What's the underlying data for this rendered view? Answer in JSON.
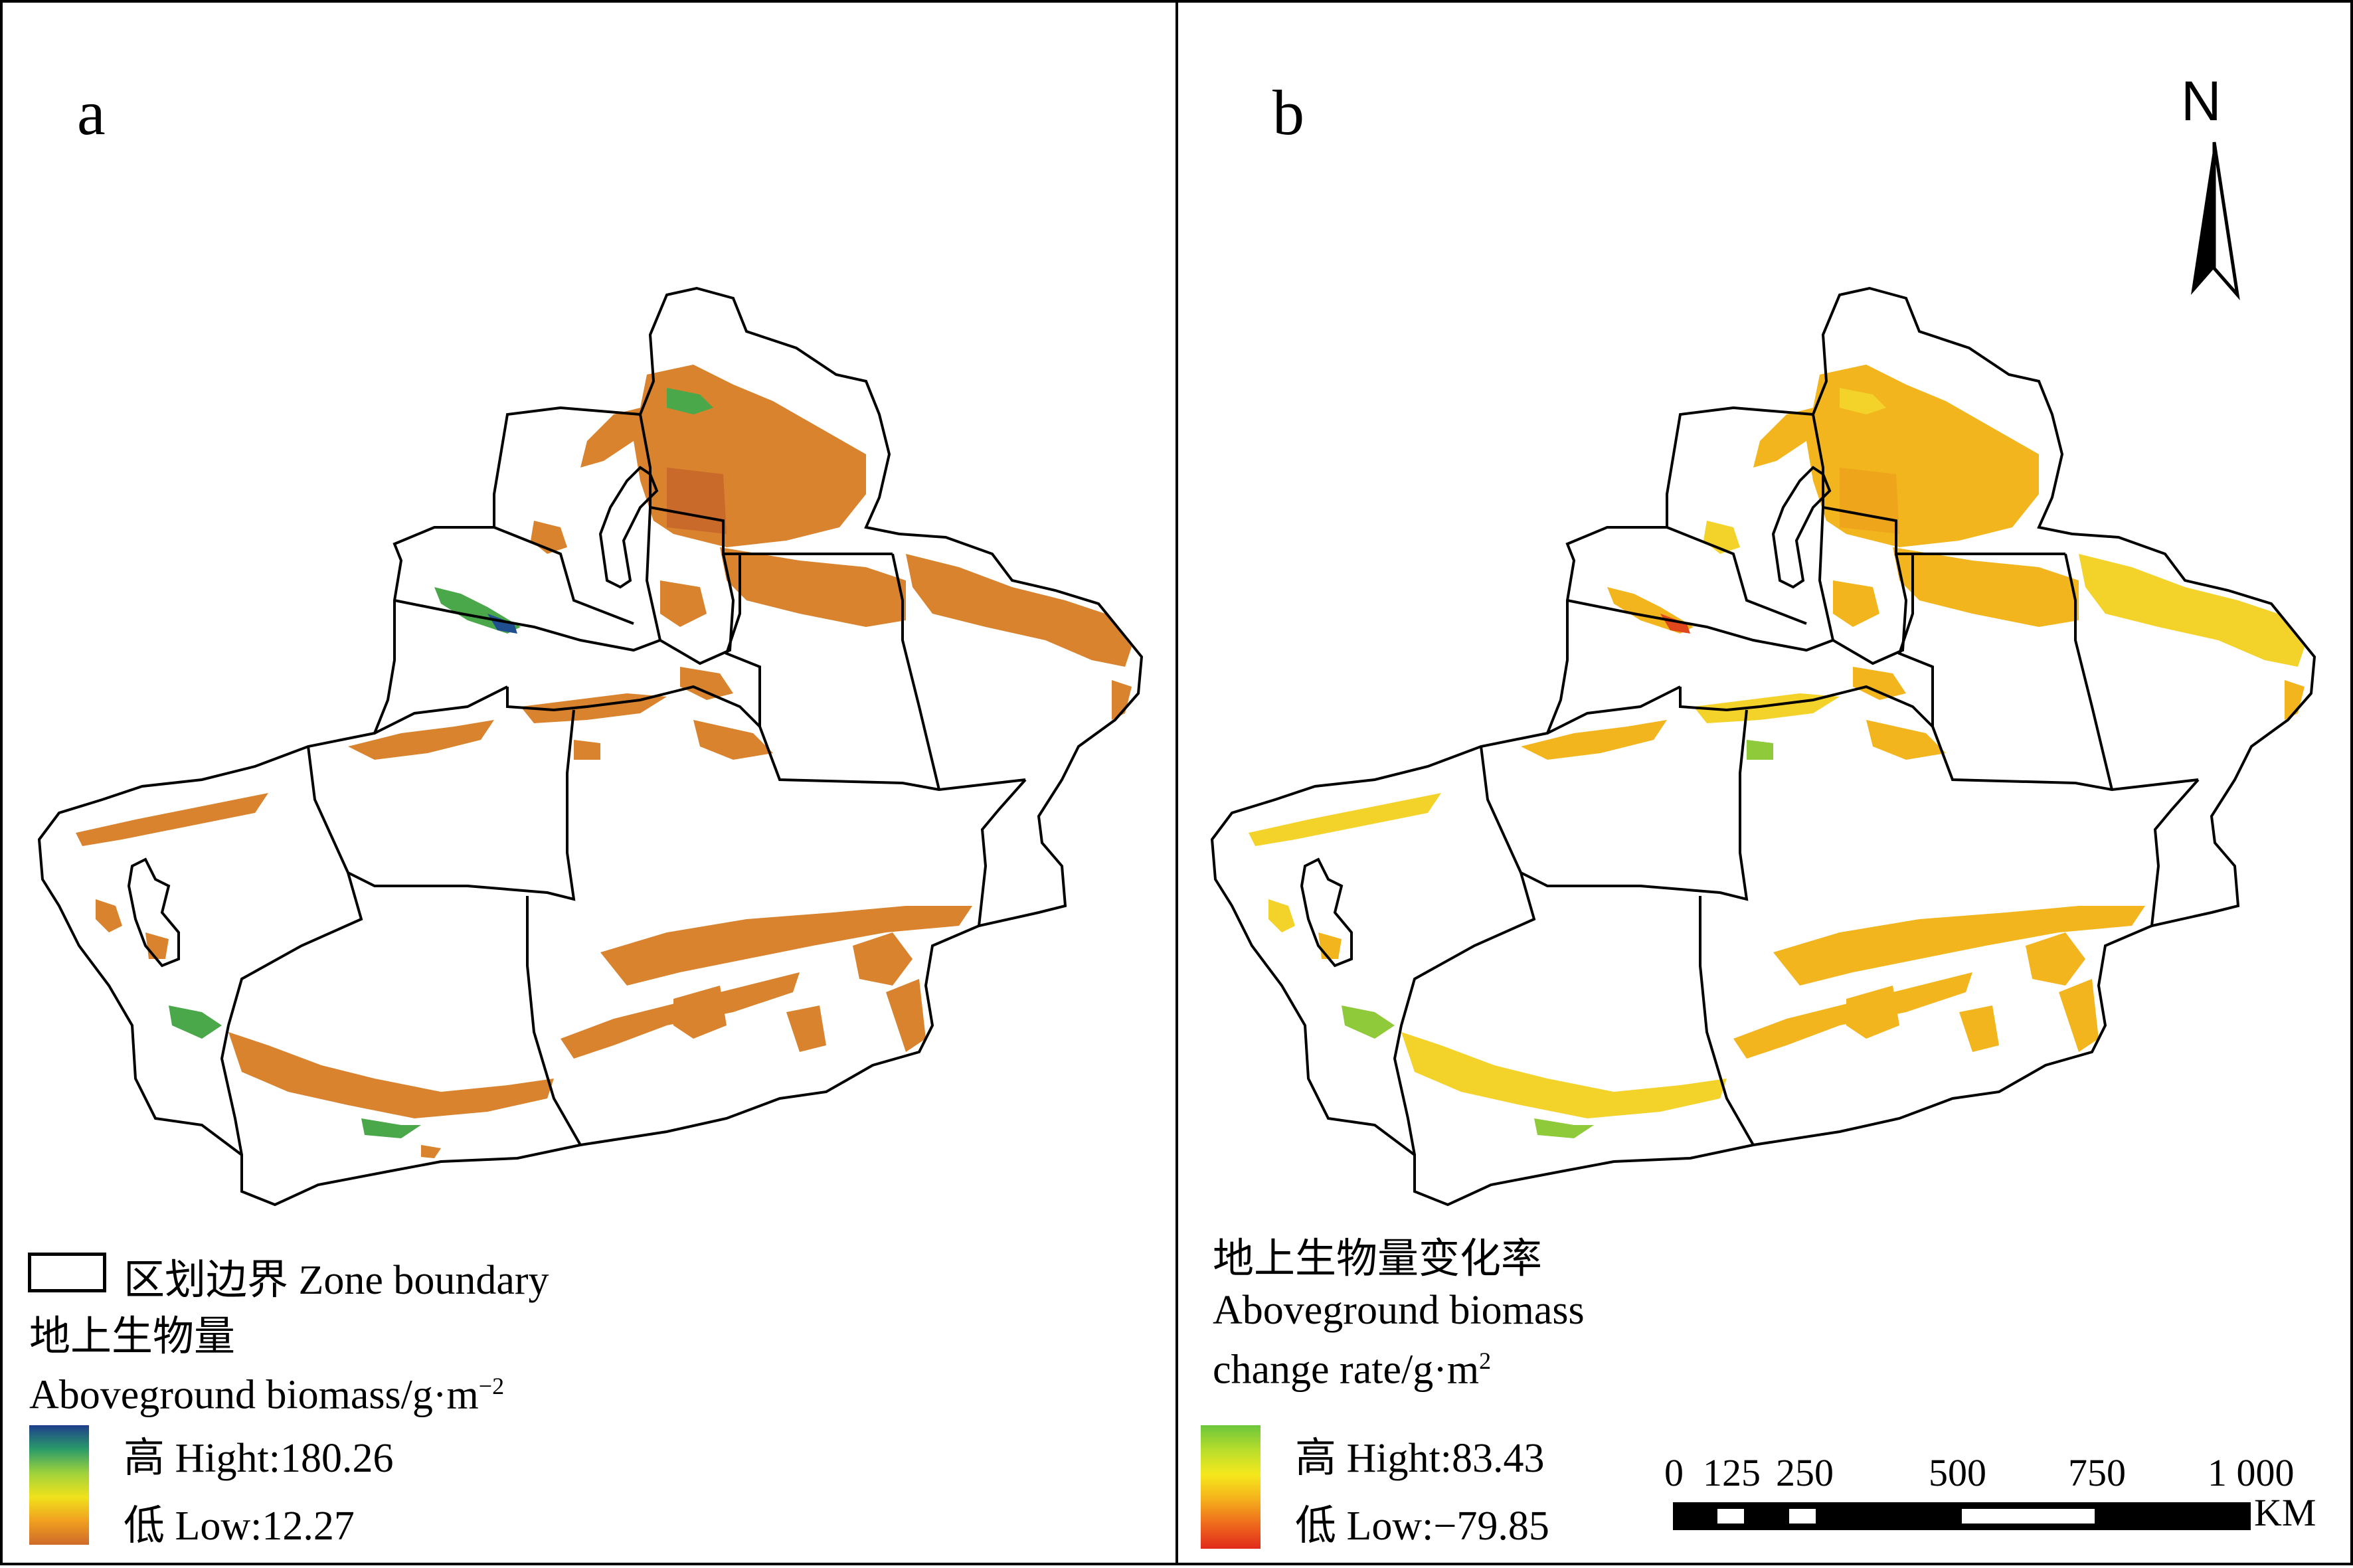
{
  "panels": [
    {
      "letter": "a",
      "legend": {
        "boundary_label": "区划边界 Zone boundary",
        "title_cn": "地上生物量",
        "title_en": "Aboveground biomass/g·m",
        "title_sup": "−2",
        "high_label": "高 Hight:180.26",
        "low_label": "低 Low:12.27",
        "ramp_colors": [
          "#1e3f8c",
          "#2a9b6a",
          "#9fd23c",
          "#f0e21c",
          "#f0a020",
          "#cf6a2a"
        ]
      }
    },
    {
      "letter": "b",
      "legend": {
        "title_cn": "地上生物量变化率",
        "title_en1": "Aboveground biomass",
        "title_en2": "change rate/g·m",
        "title_sup": "2",
        "high_label": "高 Hight:83.43",
        "low_label": "低 Low:−79.85",
        "ramp_colors": [
          "#6cc63c",
          "#b8dd2c",
          "#f5e81c",
          "#f5b01c",
          "#ee6a1c",
          "#e02a1a"
        ]
      },
      "north_label": "N",
      "scale_bar": {
        "ticks": [
          "0",
          "125",
          "250",
          "500",
          "750",
          "1 000"
        ],
        "unit": "KM"
      }
    }
  ],
  "colors": {
    "biomass_fill": "#d9832e",
    "biomass_fill_dark": "#c9692a",
    "biomass_green": "#4aa84a",
    "biomass_blue": "#1f4f8f",
    "change_fill": "#f2b51e",
    "change_fill_light": "#f3d22a",
    "change_green": "#8fca3a",
    "change_red": "#e0481c"
  }
}
